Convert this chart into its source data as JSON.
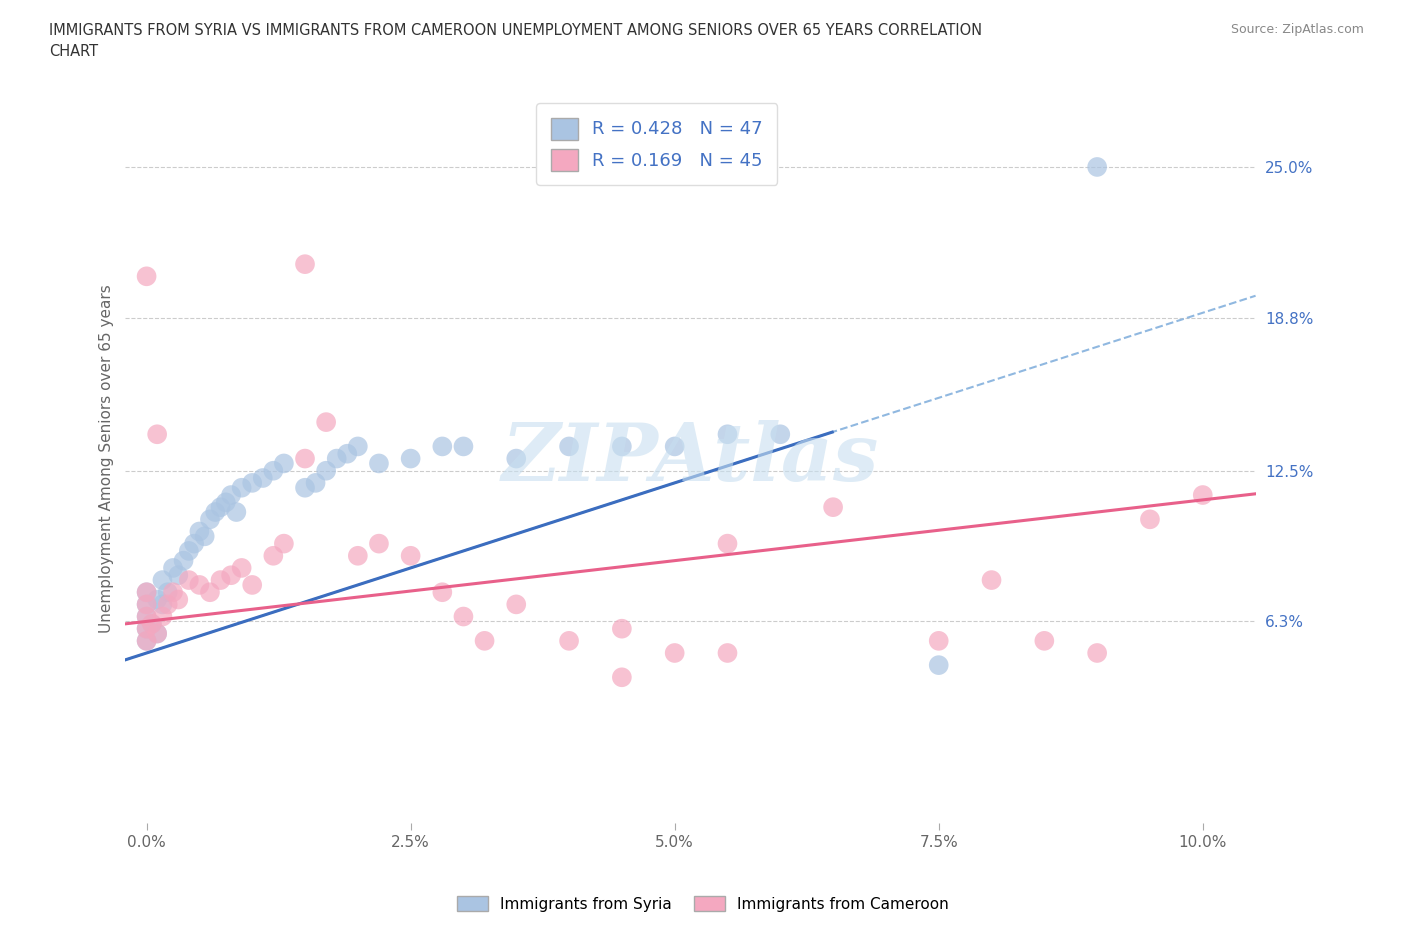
{
  "title_line1": "IMMIGRANTS FROM SYRIA VS IMMIGRANTS FROM CAMEROON UNEMPLOYMENT AMONG SENIORS OVER 65 YEARS CORRELATION",
  "title_line2": "CHART",
  "source": "Source: ZipAtlas.com",
  "ylabel": "Unemployment Among Seniors over 65 years",
  "xlabel_vals": [
    0.0,
    2.5,
    5.0,
    7.5,
    10.0
  ],
  "ytick_labels": [
    "6.3%",
    "12.5%",
    "18.8%",
    "25.0%"
  ],
  "ytick_vals": [
    6.3,
    12.5,
    18.8,
    25.0
  ],
  "xlim": [
    -0.2,
    10.5
  ],
  "ylim": [
    -2.0,
    28.0
  ],
  "syria_R": 0.428,
  "syria_N": 47,
  "cameroon_R": 0.169,
  "cameroon_N": 45,
  "syria_color": "#aac4e2",
  "cameroon_color": "#f4a8c0",
  "syria_line_color": "#3b6dbf",
  "cameroon_line_color": "#e8608a",
  "dashed_line_color": "#90b8e0",
  "watermark_color": "#c8dff0",
  "syria_scatter_x": [
    0.0,
    0.0,
    0.0,
    0.0,
    0.05,
    0.1,
    0.1,
    0.15,
    0.2,
    0.25,
    0.3,
    0.35,
    0.4,
    0.45,
    0.5,
    0.55,
    0.6,
    0.65,
    0.7,
    0.75,
    0.8,
    0.85,
    0.9,
    0.95,
    1.0,
    1.1,
    1.2,
    1.3,
    1.4,
    1.5,
    1.6,
    1.7,
    1.8,
    1.9,
    2.0,
    2.2,
    2.5,
    2.8,
    3.0,
    3.5,
    4.0,
    4.5,
    5.0,
    5.5,
    6.0,
    7.5,
    9.0
  ],
  "syria_scatter_y": [
    5.5,
    6.0,
    6.5,
    7.0,
    6.2,
    5.8,
    7.2,
    6.5,
    7.0,
    7.5,
    7.2,
    8.0,
    7.8,
    8.2,
    8.5,
    8.0,
    8.8,
    9.0,
    8.5,
    9.5,
    9.2,
    10.0,
    9.8,
    10.5,
    10.2,
    10.8,
    11.0,
    10.5,
    11.5,
    11.0,
    11.5,
    11.8,
    12.0,
    12.2,
    12.5,
    11.8,
    12.0,
    12.8,
    13.5,
    13.0,
    13.5,
    13.0,
    13.5,
    13.5,
    14.0,
    4.5,
    25.0
  ],
  "cameroon_scatter_x": [
    0.0,
    0.0,
    0.0,
    0.0,
    0.05,
    0.1,
    0.15,
    0.2,
    0.25,
    0.3,
    0.35,
    0.4,
    0.5,
    0.6,
    0.7,
    0.8,
    0.9,
    1.0,
    1.1,
    1.2,
    1.3,
    1.5,
    1.7,
    2.0,
    2.2,
    2.5,
    2.8,
    3.0,
    3.5,
    4.0,
    4.5,
    5.0,
    5.5,
    5.5,
    6.5,
    7.5,
    8.0,
    8.5,
    9.0,
    9.5,
    10.0,
    0.0,
    1.5,
    3.2,
    4.5
  ],
  "cameroon_scatter_y": [
    5.5,
    6.0,
    6.5,
    7.0,
    6.2,
    5.8,
    6.5,
    7.0,
    7.5,
    7.0,
    7.5,
    8.0,
    7.8,
    7.5,
    8.0,
    8.2,
    8.5,
    7.8,
    8.0,
    9.0,
    9.5,
    13.0,
    14.5,
    9.0,
    9.5,
    9.0,
    7.5,
    6.5,
    7.0,
    5.5,
    6.0,
    5.0,
    5.0,
    9.5,
    11.0,
    5.5,
    8.0,
    5.5,
    5.0,
    10.5,
    11.5,
    15.5,
    21.0,
    5.5,
    4.0
  ]
}
